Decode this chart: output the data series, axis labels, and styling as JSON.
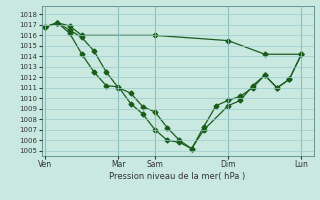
{
  "title": "Pression niveau de la mer( hPa )",
  "bg_color": "#c8e8e0",
  "grid_color": "#99cccc",
  "line_color": "#1a5c1a",
  "ylim": [
    1004.5,
    1018.8
  ],
  "yticks": [
    1005,
    1006,
    1007,
    1008,
    1009,
    1010,
    1011,
    1012,
    1013,
    1014,
    1015,
    1016,
    1017,
    1018
  ],
  "xtick_labels": [
    "Ven",
    "Mar",
    "Sam",
    "Dim",
    "Lun"
  ],
  "xtick_positions": [
    0,
    6,
    9,
    15,
    21
  ],
  "xlim": [
    -0.3,
    22.0
  ],
  "line1": {
    "x": [
      0,
      1,
      2,
      3,
      9,
      15,
      18,
      21
    ],
    "y": [
      1016.8,
      1017.2,
      1016.9,
      1016.0,
      1016.0,
      1015.5,
      1014.2,
      1014.2
    ]
  },
  "line2": {
    "x": [
      0,
      1,
      2,
      3,
      4,
      5,
      6,
      7,
      8,
      9,
      10,
      11,
      12,
      13,
      14,
      15,
      16,
      17,
      18,
      19,
      20,
      21
    ],
    "y": [
      1016.8,
      1017.2,
      1016.5,
      1015.8,
      1014.5,
      1012.5,
      1011.0,
      1010.5,
      1009.2,
      1008.7,
      1007.2,
      1006.0,
      1005.2,
      1007.3,
      1009.3,
      1009.8,
      1010.2,
      1011.0,
      1012.2,
      1011.0,
      1011.8,
      1014.2
    ]
  },
  "line3": {
    "x": [
      0,
      1,
      2,
      3,
      4,
      5,
      6,
      7,
      8,
      9,
      10,
      11,
      12,
      13,
      15,
      16,
      17,
      18,
      19,
      20,
      21
    ],
    "y": [
      1016.8,
      1017.2,
      1016.2,
      1014.2,
      1012.5,
      1011.2,
      1011.1,
      1009.5,
      1008.5,
      1007.0,
      1006.0,
      1005.8,
      1005.2,
      1007.0,
      1009.3,
      1009.8,
      1011.2,
      1012.2,
      1011.0,
      1011.8,
      1014.2
    ]
  }
}
